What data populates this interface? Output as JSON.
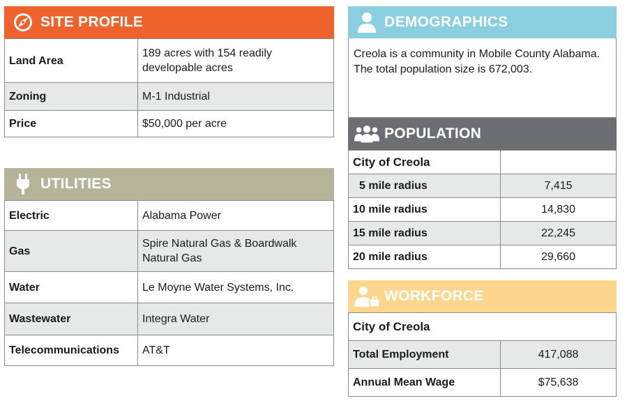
{
  "colors": {
    "site_profile": "#f0622b",
    "utilities": "#b5b499",
    "demographics": "#89cfe0",
    "population": "#6d6e71",
    "workforce": "#fcd68c"
  },
  "site_profile": {
    "title": "SITE PROFILE",
    "icon": "compass-icon",
    "rows": [
      {
        "label": "Land Area",
        "value": "189 acres with 154 readily developable acres"
      },
      {
        "label": "Zoning",
        "value": "M-1 Industrial"
      },
      {
        "label": "Price",
        "value": "$50,000 per acre"
      }
    ]
  },
  "utilities": {
    "title": "UTILITIES",
    "icon": "plug-icon",
    "rows": [
      {
        "label": "Electric",
        "value": "Alabama Power"
      },
      {
        "label": "Gas",
        "value": "Spire Natural Gas & Boardwalk Natural Gas"
      },
      {
        "label": "Water",
        "value": "Le Moyne Water Systems, Inc."
      },
      {
        "label": "Wastewater",
        "value": "Integra Water"
      },
      {
        "label": "Telecommunications",
        "value": "AT&T"
      }
    ]
  },
  "demographics": {
    "title": "DEMOGRAPHICS",
    "icon": "person-icon",
    "text": "Creola is a community in Mobile County Alabama. The total population size is 672,003."
  },
  "population": {
    "title": "POPULATION",
    "icon": "group-icon",
    "subtitle": "City of Creola",
    "rows": [
      {
        "label": "5 mile radius",
        "value": "7,415"
      },
      {
        "label": "10 mile radius",
        "value": "14,830"
      },
      {
        "label": "15 mile radius",
        "value": "22,245"
      },
      {
        "label": "20 mile radius",
        "value": "29,660"
      }
    ]
  },
  "workforce": {
    "title": "WORKFORCE",
    "icon": "worker-icon",
    "subtitle": "City of Creola",
    "rows": [
      {
        "label": "Total Employment",
        "value": "417,088"
      },
      {
        "label": "Annual Mean Wage",
        "value": "$75,638"
      }
    ]
  }
}
